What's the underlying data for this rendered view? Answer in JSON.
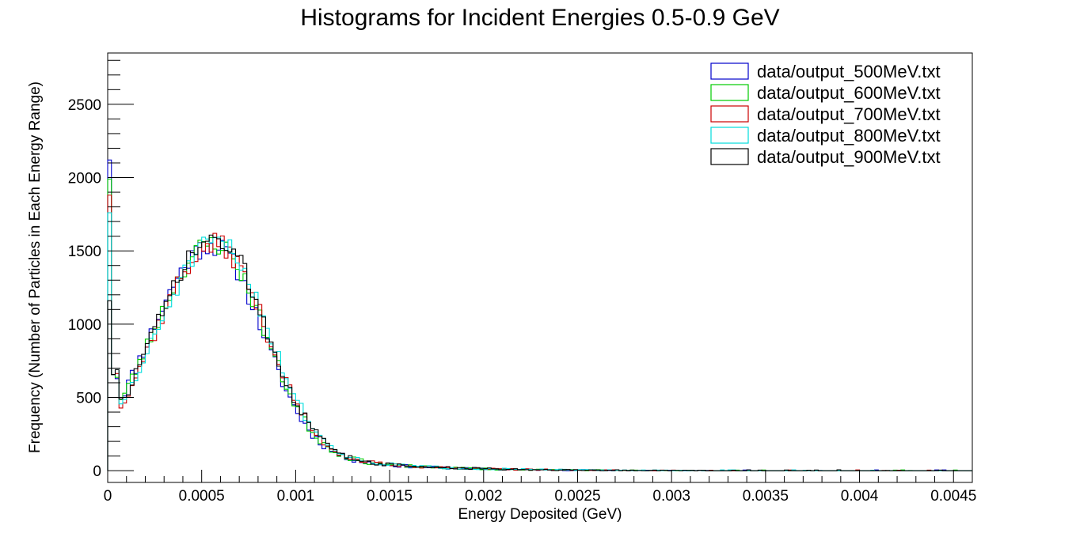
{
  "chart_data": {
    "type": "histogram",
    "title": "Histograms for Incident Energies 0.5-0.9 GeV",
    "xlabel": "Energy Deposited (GeV)",
    "ylabel": "Frequency (Number of Particles in Each Energy Range)",
    "xlim": [
      0,
      0.0046
    ],
    "ylim": [
      -80,
      2850
    ],
    "x_ticks": [
      0,
      0.0005,
      0.001,
      0.0015,
      0.002,
      0.0025,
      0.003,
      0.0035,
      0.004,
      0.0045
    ],
    "x_tick_labels": [
      "0",
      "0.0005",
      "0.001",
      "0.0015",
      "0.002",
      "0.0025",
      "0.003",
      "0.0035",
      "0.004",
      "0.0045"
    ],
    "y_ticks": [
      0,
      500,
      1000,
      1500,
      2000,
      2500
    ],
    "y_tick_labels": [
      "0",
      "500",
      "1000",
      "1500",
      "2000",
      "2500"
    ],
    "bin_width": 2e-05,
    "legend_position": "top-right",
    "grid": false,
    "series": [
      {
        "name": "data/output_500MeV.txt",
        "color": "#0000cc",
        "peak_x": 0.00055,
        "peak_y": 1540,
        "first_bin": 2120,
        "seed": 11
      },
      {
        "name": "data/output_600MeV.txt",
        "color": "#00cc00",
        "peak_x": 0.00056,
        "peak_y": 1550,
        "first_bin": 1990,
        "seed": 23
      },
      {
        "name": "data/output_700MeV.txt",
        "color": "#cc0000",
        "peak_x": 0.00057,
        "peak_y": 1545,
        "first_bin": 1880,
        "seed": 37
      },
      {
        "name": "data/output_800MeV.txt",
        "color": "#00dddd",
        "peak_x": 0.00058,
        "peak_y": 1555,
        "first_bin": 1760,
        "seed": 51
      },
      {
        "name": "data/output_900MeV.txt",
        "color": "#000000",
        "peak_x": 0.00057,
        "peak_y": 1575,
        "first_bin": 1160,
        "seed": 73
      }
    ]
  }
}
